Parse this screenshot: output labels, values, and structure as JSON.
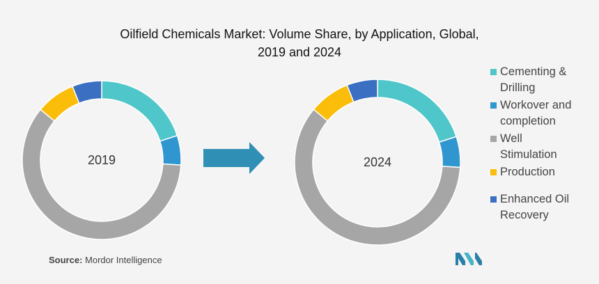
{
  "header": {
    "title_line1": "Oilfield Chemicals Market: Volume Share, by Application, Global,",
    "title_line2": "2019 and 2024"
  },
  "chart_data": [
    {
      "type": "pie",
      "label": "2019",
      "categories": [
        "Cementing & Drilling",
        "Workover and completion",
        "Well Stimulation",
        "Production",
        "Enhanced Oil Recovery"
      ],
      "values": [
        20,
        6,
        60,
        8,
        6
      ],
      "colors": [
        "#4fc6c9",
        "#2f96d0",
        "#a6a6a6",
        "#f9bd0a",
        "#3a6fc1"
      ]
    },
    {
      "type": "pie",
      "label": "2024",
      "categories": [
        "Cementing & Drilling",
        "Workover and completion",
        "Well Stimulation",
        "Production",
        "Enhanced Oil Recovery"
      ],
      "values": [
        20,
        6,
        60,
        8,
        6
      ],
      "colors": [
        "#4fc6c9",
        "#2f96d0",
        "#a6a6a6",
        "#f9bd0a",
        "#3a6fc1"
      ]
    }
  ],
  "legend": {
    "items": [
      {
        "line1": "Cementing &",
        "line2": "Drilling",
        "color": "#4fc6c9"
      },
      {
        "line1": "Workover and",
        "line2": "completion",
        "color": "#2f96d0"
      },
      {
        "line1": "Well",
        "line2": "Stimulation",
        "color": "#a6a6a6"
      },
      {
        "line1": "Production",
        "line2": "",
        "color": "#f9bd0a"
      },
      {
        "line1": "Enhanced Oil",
        "line2": "Recovery",
        "color": "#3a6fc1"
      }
    ]
  },
  "arrow": {
    "color": "#2f8fb5",
    "icon": "right-arrow-icon"
  },
  "footer": {
    "source_label": "Source:",
    "source_text": " Mordor Intelligence",
    "logo_icon": "mordor-logo-icon"
  }
}
